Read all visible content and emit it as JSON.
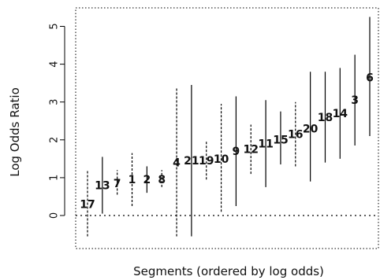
{
  "chart_data": {
    "type": "interval",
    "title": "",
    "xlabel": "Segments (ordered by log odds)",
    "ylabel": "Log Odds Ratio",
    "ylim": [
      -0.85,
      5.5
    ],
    "yticks": [
      0,
      1,
      2,
      3,
      4,
      5
    ],
    "reference_line": 0,
    "series": [
      {
        "label": "17",
        "estimate": 0.3,
        "lower": -0.55,
        "upper": 1.2,
        "style": "dashed"
      },
      {
        "label": "13",
        "estimate": 0.8,
        "lower": 0.05,
        "upper": 1.55,
        "style": "solid"
      },
      {
        "label": "7",
        "estimate": 0.85,
        "lower": 0.55,
        "upper": 1.2,
        "style": "dashed"
      },
      {
        "label": "1",
        "estimate": 0.95,
        "lower": 0.25,
        "upper": 1.65,
        "style": "dashed"
      },
      {
        "label": "2",
        "estimate": 0.95,
        "lower": 0.6,
        "upper": 1.3,
        "style": "solid"
      },
      {
        "label": "8",
        "estimate": 0.95,
        "lower": 0.75,
        "upper": 1.2,
        "style": "dashed"
      },
      {
        "label": "4",
        "estimate": 1.4,
        "lower": -0.55,
        "upper": 3.4,
        "style": "dashed"
      },
      {
        "label": "21",
        "estimate": 1.45,
        "lower": -0.55,
        "upper": 3.45,
        "style": "solid"
      },
      {
        "label": "19",
        "estimate": 1.45,
        "lower": 0.95,
        "upper": 1.95,
        "style": "dashed"
      },
      {
        "label": "10",
        "estimate": 1.5,
        "lower": 0.1,
        "upper": 2.95,
        "style": "dashed"
      },
      {
        "label": "9",
        "estimate": 1.7,
        "lower": 0.25,
        "upper": 3.15,
        "style": "solid"
      },
      {
        "label": "12",
        "estimate": 1.75,
        "lower": 1.1,
        "upper": 2.4,
        "style": "dashed"
      },
      {
        "label": "11",
        "estimate": 1.9,
        "lower": 0.75,
        "upper": 3.05,
        "style": "solid"
      },
      {
        "label": "15",
        "estimate": 2.0,
        "lower": 1.35,
        "upper": 2.75,
        "style": "solid"
      },
      {
        "label": "16",
        "estimate": 2.15,
        "lower": 1.3,
        "upper": 3.0,
        "style": "dashed"
      },
      {
        "label": "20",
        "estimate": 2.3,
        "lower": 0.9,
        "upper": 3.8,
        "style": "solid"
      },
      {
        "label": "18",
        "estimate": 2.6,
        "lower": 1.4,
        "upper": 3.8,
        "style": "solid"
      },
      {
        "label": "14",
        "estimate": 2.7,
        "lower": 1.5,
        "upper": 3.9,
        "style": "solid"
      },
      {
        "label": "3",
        "estimate": 3.05,
        "lower": 1.85,
        "upper": 4.25,
        "style": "solid"
      },
      {
        "label": "6",
        "estimate": 3.65,
        "lower": 2.1,
        "upper": 5.25,
        "style": "solid"
      }
    ]
  }
}
